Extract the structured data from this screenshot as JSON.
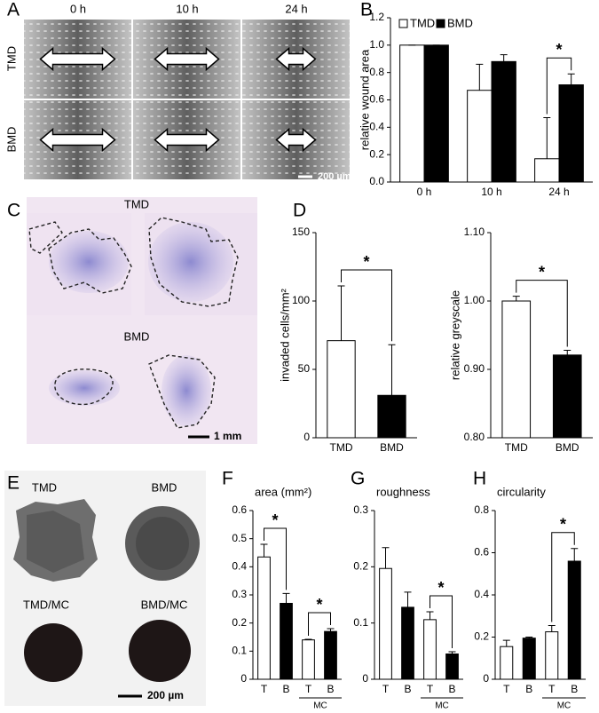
{
  "panel_labels": [
    "A",
    "B",
    "C",
    "D",
    "E",
    "F",
    "G",
    "H"
  ],
  "images": {
    "A": {
      "columns": [
        "0 h",
        "10 h",
        "24 h"
      ],
      "rows": [
        "TMD",
        "BMD"
      ],
      "scale_bar": "200 µm"
    },
    "C": {
      "rows": [
        "TMD",
        "BMD"
      ],
      "scale_bar": "1 mm"
    },
    "E": {
      "labels": [
        "TMD",
        "BMD",
        "TMD/MC",
        "BMD/MC"
      ],
      "scale_bar": "200 µm"
    }
  },
  "chart_data": [
    {
      "type": "bar",
      "ylabel": "relative wound area",
      "categories": [
        "0 h",
        "10 h",
        "24 h"
      ],
      "series": [
        {
          "name": "TMD",
          "color": "#ffffff",
          "values": [
            1.0,
            0.67,
            0.17
          ],
          "errors": [
            0,
            0.19,
            0.3
          ]
        },
        {
          "name": "BMD",
          "color": "#000000",
          "values": [
            1.0,
            0.88,
            0.71
          ],
          "errors": [
            0,
            0.05,
            0.08
          ]
        }
      ],
      "ylim": [
        0,
        1.2
      ],
      "yticks": [
        {
          "value": 0,
          "label": "0.0"
        },
        0.2,
        0.4,
        0.6,
        0.8,
        {
          "value": 1,
          "label": "1.0"
        },
        1.2
      ],
      "legend": "top",
      "annotations": [
        "*"
      ]
    },
    {
      "type": "bar",
      "ylabel": "invaded cells/mm²",
      "categories": [
        "TMD",
        "BMD"
      ],
      "values": [
        71,
        31
      ],
      "errors": [
        40,
        37
      ],
      "colors": [
        "#ffffff",
        "#000000"
      ],
      "ylim": [
        0,
        150
      ],
      "yticks": [
        0,
        50,
        100,
        150
      ],
      "annotations": [
        "*"
      ]
    },
    {
      "type": "bar",
      "ylabel": "relative greyscale",
      "categories": [
        "TMD",
        "BMD"
      ],
      "values": [
        1.0,
        0.921
      ],
      "errors": [
        0.007,
        0.007
      ],
      "colors": [
        "#ffffff",
        "#000000"
      ],
      "ylim": [
        0.8,
        1.1
      ],
      "yticks": [
        {
          "value": 0.8,
          "label": "0.80"
        },
        {
          "value": 0.9,
          "label": "0.90"
        },
        {
          "value": 1,
          "label": "1.00"
        },
        {
          "value": 1.1,
          "label": "1.10"
        }
      ],
      "annotations": [
        "*"
      ]
    },
    {
      "type": "bar",
      "title": "area (mm²)",
      "categories": [
        "T",
        "B",
        "T",
        "B"
      ],
      "group_label": "MC",
      "values": [
        0.435,
        0.27,
        0.14,
        0.17
      ],
      "errors": [
        0.045,
        0.035,
        0.002,
        0.01
      ],
      "colors": [
        "#ffffff",
        "#000000",
        "#ffffff",
        "#000000"
      ],
      "ylim": [
        0,
        0.6
      ],
      "yticks": [
        0,
        0.1,
        0.2,
        0.3,
        0.4,
        0.5,
        0.6
      ],
      "annotations": [
        "*",
        "*"
      ]
    },
    {
      "type": "bar",
      "title": "roughness",
      "categories": [
        "T",
        "B",
        "T",
        "B"
      ],
      "group_label": "MC",
      "values": [
        0.197,
        0.128,
        0.106,
        0.045
      ],
      "errors": [
        0.037,
        0.027,
        0.014,
        0.004
      ],
      "colors": [
        "#ffffff",
        "#000000",
        "#ffffff",
        "#000000"
      ],
      "ylim": [
        0,
        0.3
      ],
      "yticks": [
        0,
        0.1,
        0.2,
        0.3
      ],
      "annotations": [
        "*"
      ]
    },
    {
      "type": "bar",
      "title": "circularity",
      "categories": [
        "T",
        "B",
        "T",
        "B"
      ],
      "group_label": "MC",
      "values": [
        0.155,
        0.195,
        0.225,
        0.56
      ],
      "errors": [
        0.03,
        0.005,
        0.03,
        0.06
      ],
      "colors": [
        "#ffffff",
        "#000000",
        "#ffffff",
        "#000000"
      ],
      "ylim": [
        0,
        0.8
      ],
      "yticks": [
        0,
        0.2,
        0.4,
        0.6,
        0.8
      ],
      "annotations": [
        "*"
      ]
    }
  ]
}
